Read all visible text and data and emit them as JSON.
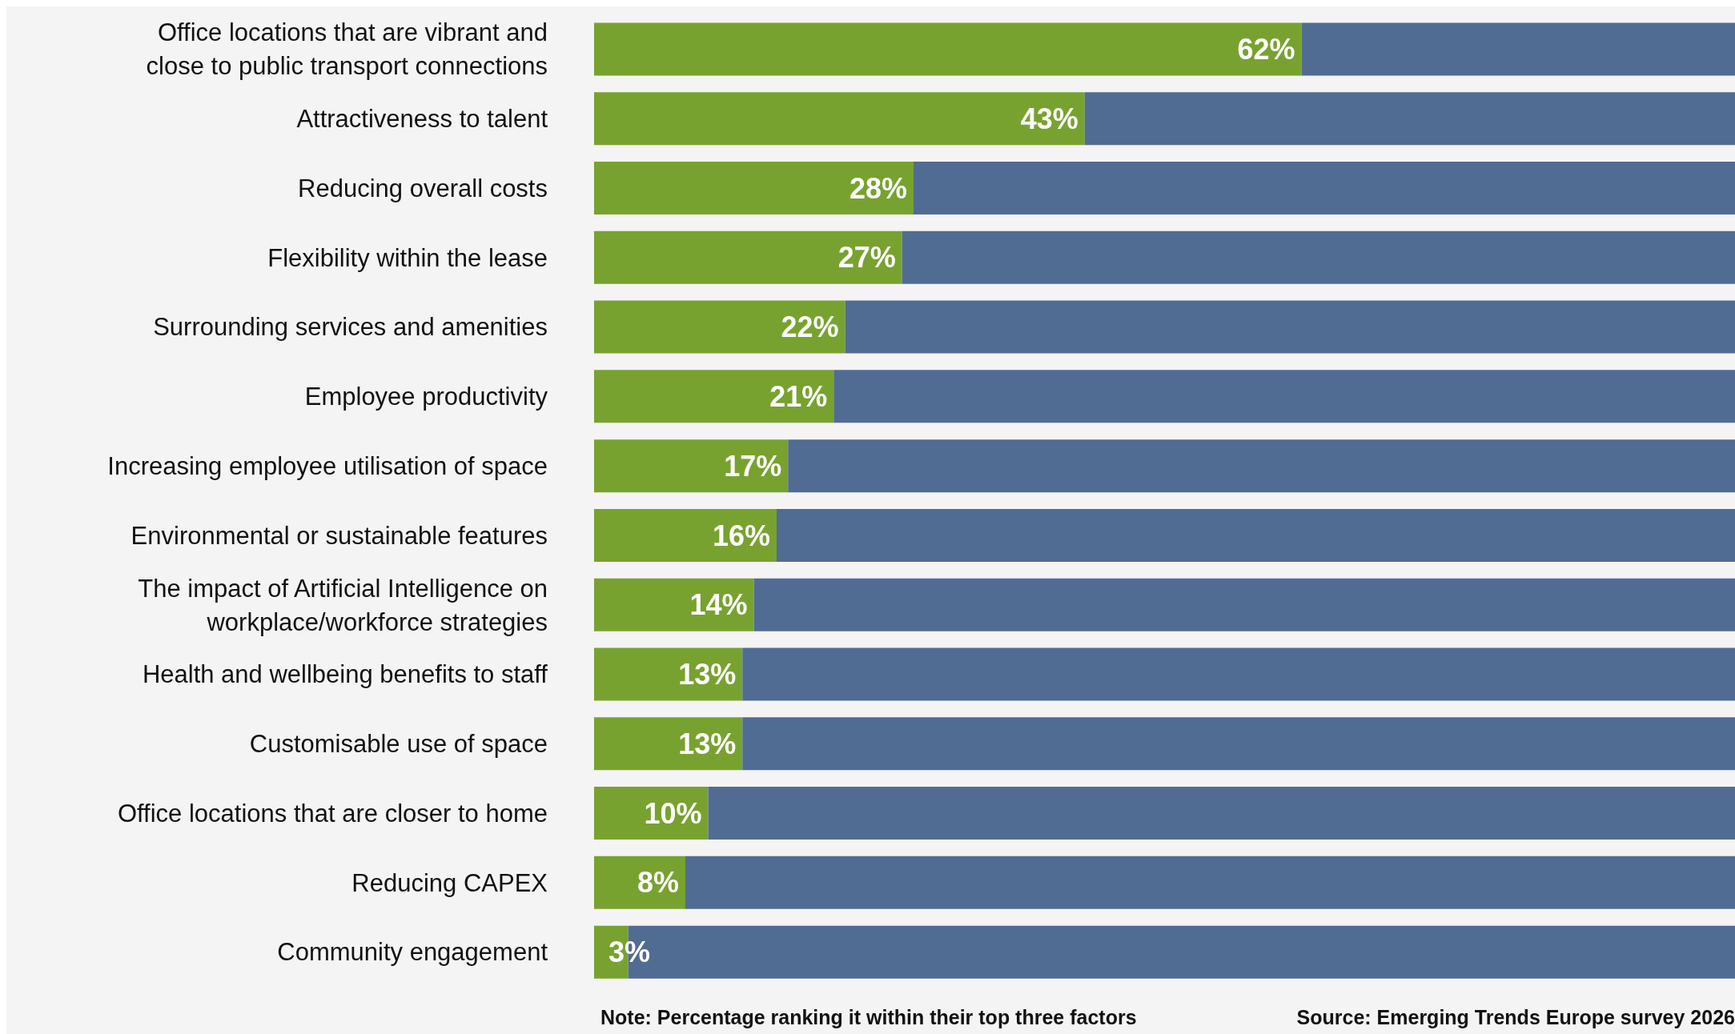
{
  "chart_data": {
    "type": "bar",
    "orientation": "horizontal",
    "stacked": true,
    "categories": [
      "Office locations that are vibrant and close to public transport connections",
      "Attractiveness to talent",
      "Reducing overall costs",
      "Flexibility within the lease",
      "Surrounding services and amenities",
      "Employee productivity",
      "Increasing employee utilisation of space",
      "Environmental or sustainable features",
      "The impact of Artificial Intelligence on workplace/workforce strategies",
      "Health and wellbeing benefits to staff",
      "Customisable use of space",
      "Office locations that are closer to home",
      "Reducing CAPEX",
      "Community engagement"
    ],
    "series": [
      {
        "color": "#78a22f",
        "values": [
          62,
          43,
          28,
          27,
          22,
          21,
          17,
          16,
          14,
          13,
          13,
          10,
          8,
          3
        ],
        "value_labels": [
          "62%",
          "43%",
          "28%",
          "27%",
          "22%",
          "21%",
          "17%",
          "16%",
          "14%",
          "13%",
          "13%",
          "10%",
          "8%",
          "3%"
        ]
      },
      {
        "color": "#516c93",
        "values": [
          38,
          57,
          72,
          73,
          78,
          79,
          83,
          84,
          86,
          87,
          87,
          90,
          92,
          97
        ]
      }
    ],
    "legend": false,
    "grid": false,
    "annotations": [
      "Note: Percentage ranking it within their top three factors",
      "Source: Emerging Trends Europe survey 2026"
    ]
  }
}
